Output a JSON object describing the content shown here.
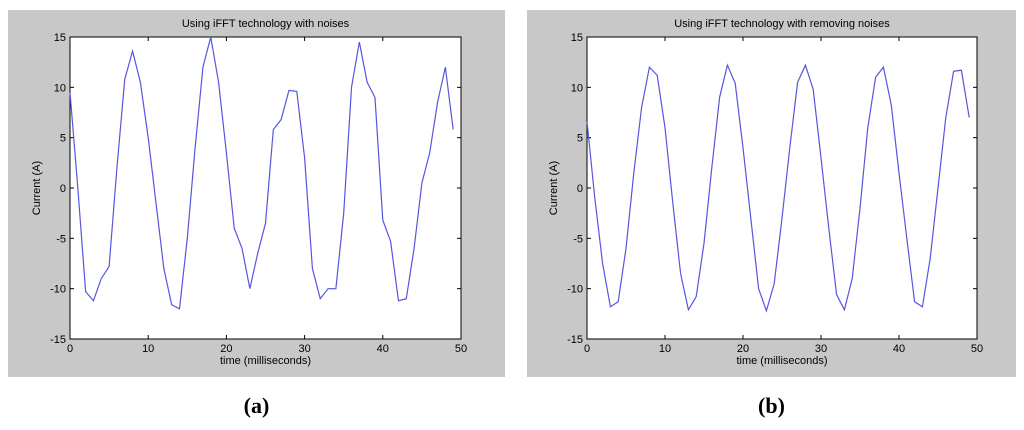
{
  "chart_data": [
    {
      "type": "line",
      "title": "Using iFFT technology with  noises",
      "xlabel": "time (milliseconds)",
      "ylabel": "Current (A)",
      "caption": "(a)",
      "x": [
        0,
        1,
        2,
        3,
        4,
        5,
        6,
        7,
        8,
        9,
        10,
        11,
        12,
        13,
        14,
        15,
        16,
        17,
        18,
        19,
        20,
        21,
        22,
        23,
        24,
        25,
        26,
        27,
        28,
        29,
        30,
        31,
        32,
        33,
        34,
        35,
        36,
        37,
        38,
        39,
        40,
        41,
        42,
        43,
        44,
        45,
        46,
        47,
        48,
        49
      ],
      "values": [
        9.5,
        0,
        -10.3,
        -11.2,
        -9,
        -7.8,
        2,
        10.8,
        13.6,
        10.5,
        5,
        -1.5,
        -8,
        -11.6,
        -12,
        -5,
        4,
        12,
        15,
        10.5,
        3.5,
        -4,
        -6,
        -10,
        -6.5,
        -3.5,
        5.8,
        6.8,
        9.7,
        9.6,
        3,
        -8,
        -11,
        -10,
        -10,
        -2.5,
        10,
        14.5,
        10.5,
        9,
        -3.2,
        -5.3,
        -11.2,
        -11,
        -6,
        0.5,
        3.5,
        8.5,
        12,
        5.8
      ],
      "color": "#5656e0",
      "xlim": [
        0,
        50
      ],
      "ylim": [
        -15,
        15
      ],
      "xticks": [
        0,
        10,
        20,
        30,
        40,
        50
      ],
      "yticks": [
        -15,
        -10,
        -5,
        0,
        5,
        10,
        15
      ]
    },
    {
      "type": "line",
      "title": "Using iFFT technology with removing noises",
      "xlabel": "time (milliseconds)",
      "ylabel": "Current (A)",
      "caption": "(b)",
      "x": [
        0,
        1,
        2,
        3,
        4,
        5,
        6,
        7,
        8,
        9,
        10,
        11,
        12,
        13,
        14,
        15,
        16,
        17,
        18,
        19,
        20,
        21,
        22,
        23,
        24,
        25,
        26,
        27,
        28,
        29,
        30,
        31,
        32,
        33,
        34,
        35,
        36,
        37,
        38,
        39,
        40,
        41,
        42,
        43,
        44,
        45,
        46,
        47,
        48,
        49
      ],
      "values": [
        6.6,
        -1,
        -7.5,
        -11.8,
        -11.3,
        -6,
        1.5,
        8,
        12,
        11.2,
        6,
        -1.5,
        -8.5,
        -12.1,
        -10.8,
        -5.5,
        2,
        9,
        12.2,
        10.4,
        4,
        -3,
        -10,
        -12.2,
        -9.5,
        -3,
        4,
        10.5,
        12.2,
        9.8,
        3,
        -4,
        -10.6,
        -12.1,
        -9,
        -2,
        6,
        11,
        12,
        8.3,
        1.5,
        -5,
        -11.3,
        -11.8,
        -7,
        0,
        7,
        11.6,
        11.7,
        7
      ],
      "color": "#5656e0",
      "xlim": [
        0,
        50
      ],
      "ylim": [
        -15,
        15
      ],
      "xticks": [
        0,
        10,
        20,
        30,
        40,
        50
      ],
      "yticks": [
        -15,
        -10,
        -5,
        0,
        5,
        10,
        15
      ]
    }
  ]
}
